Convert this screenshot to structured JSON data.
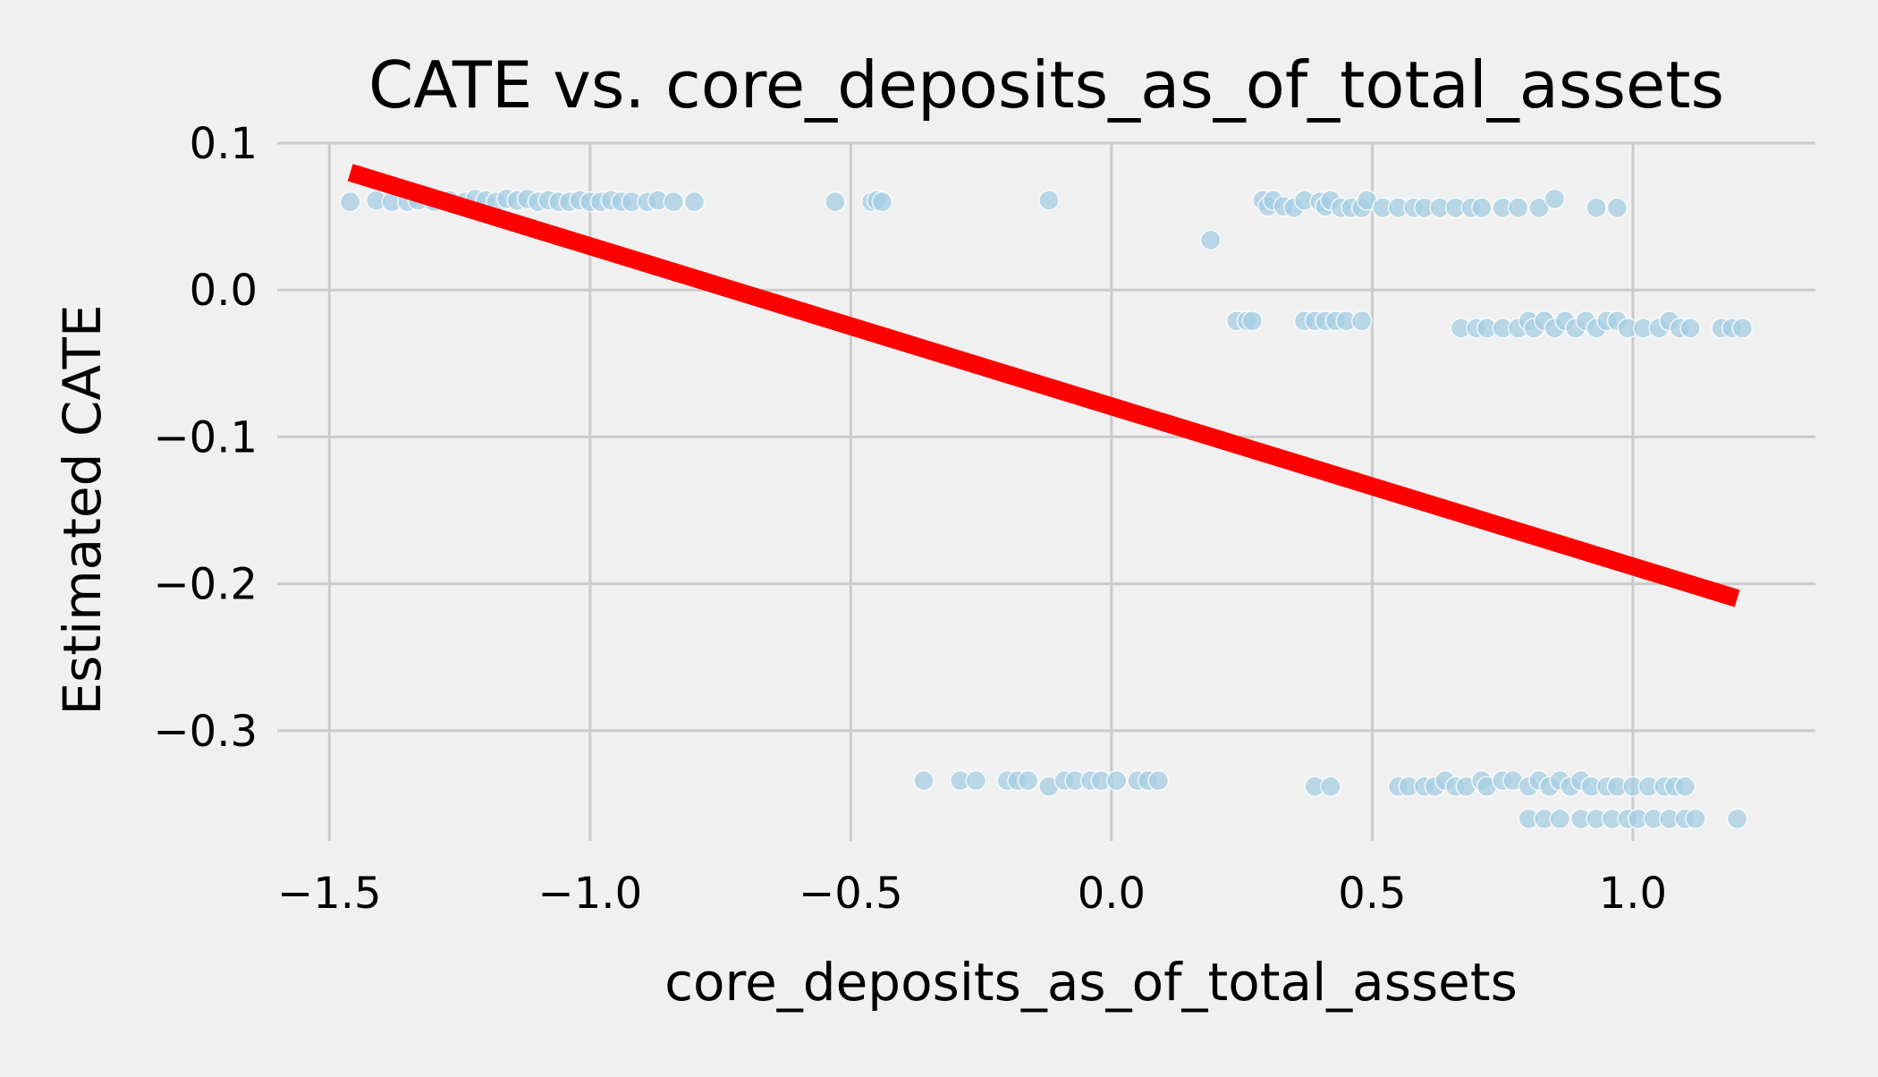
{
  "chart_data": {
    "type": "scatter",
    "title": "CATE vs. core_deposits_as_of_total_assets",
    "xlabel": "core_deposits_as_of_total_assets",
    "ylabel": "Estimated CATE",
    "xlim": [
      -1.6,
      1.35
    ],
    "ylim": [
      -0.375,
      0.1
    ],
    "xticks": [
      -1.5,
      -1.0,
      -0.5,
      0.0,
      0.5,
      1.0
    ],
    "xtick_labels": [
      "−1.5",
      "−1.0",
      "−0.5",
      "0.0",
      "0.5",
      "1.0"
    ],
    "yticks": [
      0.1,
      0.0,
      -0.1,
      -0.2,
      -0.3
    ],
    "ytick_labels": [
      "0.1",
      "0.0",
      "−0.1",
      "−0.2",
      "−0.3"
    ],
    "grid": true,
    "colors": {
      "background": "#f0f0f0",
      "points": "#a6cee3",
      "fit_line": "#ff0000",
      "grid": "#cbcbcb"
    },
    "fit_line": {
      "x": [
        -1.46,
        1.2
      ],
      "y": [
        0.08,
        -0.21
      ]
    },
    "points": [
      {
        "x": -1.46,
        "y": 0.06
      },
      {
        "x": -1.41,
        "y": 0.061
      },
      {
        "x": -1.38,
        "y": 0.06
      },
      {
        "x": -1.35,
        "y": 0.06
      },
      {
        "x": -1.33,
        "y": 0.061
      },
      {
        "x": -1.3,
        "y": 0.06
      },
      {
        "x": -1.27,
        "y": 0.061
      },
      {
        "x": -1.24,
        "y": 0.06
      },
      {
        "x": -1.22,
        "y": 0.062
      },
      {
        "x": -1.2,
        "y": 0.061
      },
      {
        "x": -1.18,
        "y": 0.06
      },
      {
        "x": -1.16,
        "y": 0.062
      },
      {
        "x": -1.14,
        "y": 0.061
      },
      {
        "x": -1.12,
        "y": 0.062
      },
      {
        "x": -1.1,
        "y": 0.06
      },
      {
        "x": -1.08,
        "y": 0.061
      },
      {
        "x": -1.06,
        "y": 0.06
      },
      {
        "x": -1.04,
        "y": 0.06
      },
      {
        "x": -1.02,
        "y": 0.061
      },
      {
        "x": -1.0,
        "y": 0.06
      },
      {
        "x": -0.98,
        "y": 0.06
      },
      {
        "x": -0.96,
        "y": 0.061
      },
      {
        "x": -0.94,
        "y": 0.06
      },
      {
        "x": -0.92,
        "y": 0.06
      },
      {
        "x": -0.89,
        "y": 0.06
      },
      {
        "x": -0.87,
        "y": 0.061
      },
      {
        "x": -0.84,
        "y": 0.06
      },
      {
        "x": -0.8,
        "y": 0.06
      },
      {
        "x": -0.53,
        "y": 0.06
      },
      {
        "x": -0.46,
        "y": 0.06
      },
      {
        "x": -0.45,
        "y": 0.061
      },
      {
        "x": -0.44,
        "y": 0.06
      },
      {
        "x": -0.12,
        "y": 0.061
      },
      {
        "x": 0.19,
        "y": 0.034
      },
      {
        "x": 0.29,
        "y": 0.061
      },
      {
        "x": 0.3,
        "y": 0.057
      },
      {
        "x": 0.31,
        "y": 0.061
      },
      {
        "x": 0.33,
        "y": 0.057
      },
      {
        "x": 0.35,
        "y": 0.056
      },
      {
        "x": 0.37,
        "y": 0.061
      },
      {
        "x": 0.4,
        "y": 0.06
      },
      {
        "x": 0.41,
        "y": 0.057
      },
      {
        "x": 0.42,
        "y": 0.061
      },
      {
        "x": 0.44,
        "y": 0.056
      },
      {
        "x": 0.46,
        "y": 0.056
      },
      {
        "x": 0.48,
        "y": 0.056
      },
      {
        "x": 0.49,
        "y": 0.061
      },
      {
        "x": 0.52,
        "y": 0.056
      },
      {
        "x": 0.55,
        "y": 0.056
      },
      {
        "x": 0.58,
        "y": 0.056
      },
      {
        "x": 0.6,
        "y": 0.056
      },
      {
        "x": 0.63,
        "y": 0.056
      },
      {
        "x": 0.66,
        "y": 0.056
      },
      {
        "x": 0.69,
        "y": 0.056
      },
      {
        "x": 0.71,
        "y": 0.056
      },
      {
        "x": 0.75,
        "y": 0.056
      },
      {
        "x": 0.78,
        "y": 0.056
      },
      {
        "x": 0.82,
        "y": 0.056
      },
      {
        "x": 0.85,
        "y": 0.062
      },
      {
        "x": 0.93,
        "y": 0.056
      },
      {
        "x": 0.97,
        "y": 0.056
      },
      {
        "x": 0.24,
        "y": -0.021
      },
      {
        "x": 0.26,
        "y": -0.021
      },
      {
        "x": 0.27,
        "y": -0.021
      },
      {
        "x": 0.37,
        "y": -0.021
      },
      {
        "x": 0.39,
        "y": -0.021
      },
      {
        "x": 0.41,
        "y": -0.021
      },
      {
        "x": 0.43,
        "y": -0.021
      },
      {
        "x": 0.45,
        "y": -0.021
      },
      {
        "x": 0.48,
        "y": -0.021
      },
      {
        "x": 0.67,
        "y": -0.026
      },
      {
        "x": 0.7,
        "y": -0.026
      },
      {
        "x": 0.72,
        "y": -0.026
      },
      {
        "x": 0.75,
        "y": -0.026
      },
      {
        "x": 0.78,
        "y": -0.026
      },
      {
        "x": 0.8,
        "y": -0.021
      },
      {
        "x": 0.81,
        "y": -0.026
      },
      {
        "x": 0.83,
        "y": -0.021
      },
      {
        "x": 0.85,
        "y": -0.026
      },
      {
        "x": 0.87,
        "y": -0.021
      },
      {
        "x": 0.89,
        "y": -0.026
      },
      {
        "x": 0.91,
        "y": -0.021
      },
      {
        "x": 0.93,
        "y": -0.026
      },
      {
        "x": 0.95,
        "y": -0.021
      },
      {
        "x": 0.97,
        "y": -0.021
      },
      {
        "x": 0.99,
        "y": -0.026
      },
      {
        "x": 1.02,
        "y": -0.026
      },
      {
        "x": 1.05,
        "y": -0.026
      },
      {
        "x": 1.07,
        "y": -0.021
      },
      {
        "x": 1.09,
        "y": -0.026
      },
      {
        "x": 1.11,
        "y": -0.026
      },
      {
        "x": 1.17,
        "y": -0.026
      },
      {
        "x": 1.19,
        "y": -0.026
      },
      {
        "x": 1.21,
        "y": -0.026
      },
      {
        "x": -0.36,
        "y": -0.334
      },
      {
        "x": -0.29,
        "y": -0.334
      },
      {
        "x": -0.26,
        "y": -0.334
      },
      {
        "x": -0.2,
        "y": -0.334
      },
      {
        "x": -0.18,
        "y": -0.334
      },
      {
        "x": -0.16,
        "y": -0.334
      },
      {
        "x": -0.12,
        "y": -0.338
      },
      {
        "x": -0.09,
        "y": -0.334
      },
      {
        "x": -0.07,
        "y": -0.334
      },
      {
        "x": -0.04,
        "y": -0.334
      },
      {
        "x": -0.02,
        "y": -0.334
      },
      {
        "x": 0.01,
        "y": -0.334
      },
      {
        "x": 0.05,
        "y": -0.334
      },
      {
        "x": 0.07,
        "y": -0.334
      },
      {
        "x": 0.09,
        "y": -0.334
      },
      {
        "x": 0.39,
        "y": -0.338
      },
      {
        "x": 0.42,
        "y": -0.338
      },
      {
        "x": 0.55,
        "y": -0.338
      },
      {
        "x": 0.57,
        "y": -0.338
      },
      {
        "x": 0.6,
        "y": -0.338
      },
      {
        "x": 0.62,
        "y": -0.338
      },
      {
        "x": 0.64,
        "y": -0.334
      },
      {
        "x": 0.66,
        "y": -0.338
      },
      {
        "x": 0.68,
        "y": -0.338
      },
      {
        "x": 0.71,
        "y": -0.334
      },
      {
        "x": 0.72,
        "y": -0.338
      },
      {
        "x": 0.75,
        "y": -0.334
      },
      {
        "x": 0.77,
        "y": -0.334
      },
      {
        "x": 0.8,
        "y": -0.338
      },
      {
        "x": 0.82,
        "y": -0.334
      },
      {
        "x": 0.84,
        "y": -0.338
      },
      {
        "x": 0.86,
        "y": -0.334
      },
      {
        "x": 0.88,
        "y": -0.338
      },
      {
        "x": 0.9,
        "y": -0.334
      },
      {
        "x": 0.92,
        "y": -0.338
      },
      {
        "x": 0.95,
        "y": -0.338
      },
      {
        "x": 0.97,
        "y": -0.338
      },
      {
        "x": 1.0,
        "y": -0.338
      },
      {
        "x": 1.03,
        "y": -0.338
      },
      {
        "x": 1.06,
        "y": -0.338
      },
      {
        "x": 1.08,
        "y": -0.338
      },
      {
        "x": 1.1,
        "y": -0.338
      },
      {
        "x": 0.8,
        "y": -0.36
      },
      {
        "x": 0.83,
        "y": -0.36
      },
      {
        "x": 0.86,
        "y": -0.36
      },
      {
        "x": 0.9,
        "y": -0.36
      },
      {
        "x": 0.93,
        "y": -0.36
      },
      {
        "x": 0.96,
        "y": -0.36
      },
      {
        "x": 0.99,
        "y": -0.36
      },
      {
        "x": 1.01,
        "y": -0.36
      },
      {
        "x": 1.04,
        "y": -0.36
      },
      {
        "x": 1.07,
        "y": -0.36
      },
      {
        "x": 1.1,
        "y": -0.36
      },
      {
        "x": 1.12,
        "y": -0.36
      },
      {
        "x": 1.2,
        "y": -0.36
      }
    ]
  }
}
